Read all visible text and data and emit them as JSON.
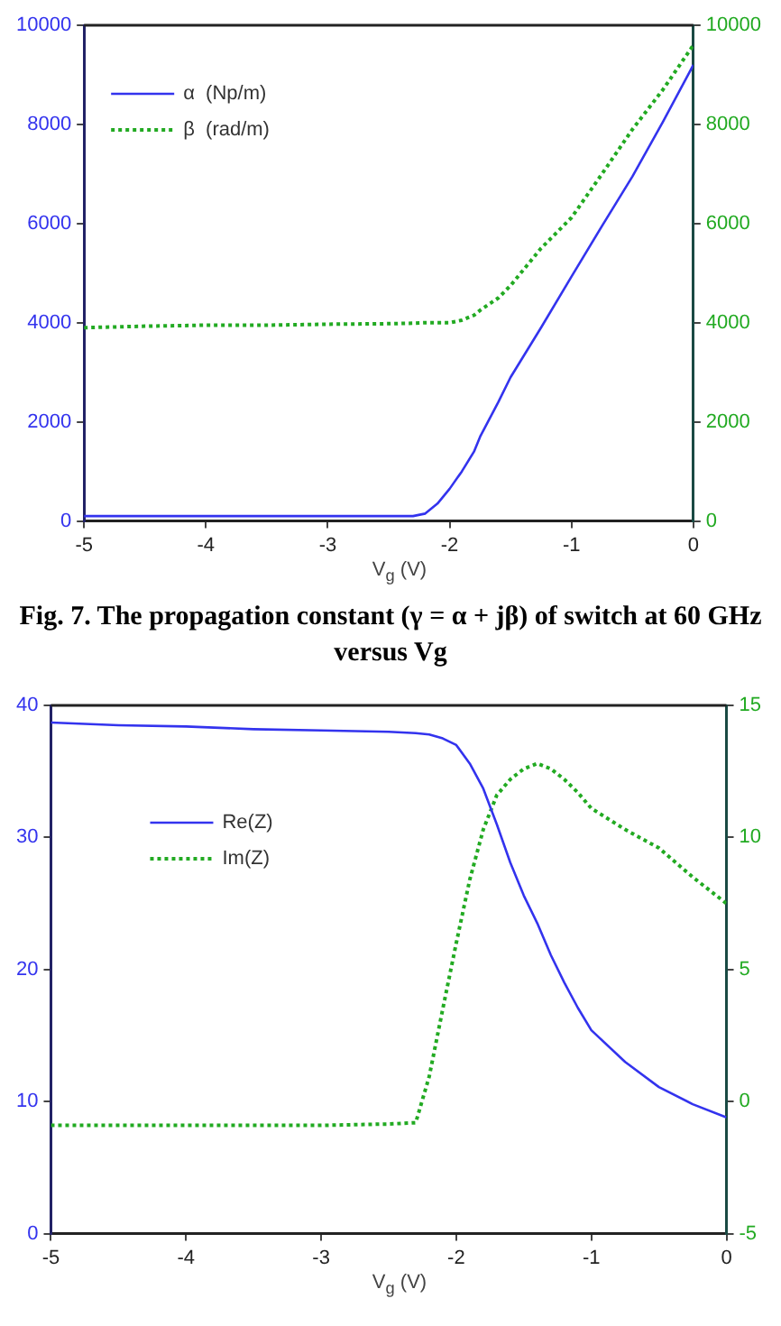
{
  "chart_data": [
    {
      "type": "line",
      "xlabel": "V$_{g}$ (V)",
      "x": [
        -5,
        -4.5,
        -4,
        -3.5,
        -3,
        -2.5,
        -2.3,
        -2.2,
        -2.1,
        -2.0,
        -1.9,
        -1.8,
        -1.75,
        -1.6,
        -1.5,
        -1.25,
        -1.0,
        -0.75,
        -0.5,
        -0.25,
        0
      ],
      "series": [
        {
          "name": "α  (Np/m)",
          "color": "#3333ee",
          "line_style": "solid",
          "axis": "y",
          "values": [
            100,
            100,
            100,
            100,
            100,
            100,
            100,
            150,
            350,
            650,
            1000,
            1400,
            1700,
            2400,
            2900,
            3900,
            4930,
            5950,
            6950,
            8050,
            9200
          ]
        },
        {
          "name": "β  (rad/m)",
          "color": "#22aa22",
          "line_style": "dotted",
          "axis": "y2",
          "values": [
            3900,
            3930,
            3950,
            3950,
            3970,
            3980,
            3990,
            4000,
            4000,
            4000,
            4050,
            4150,
            4250,
            4500,
            4750,
            5500,
            6120,
            7000,
            7900,
            8700,
            9600
          ]
        }
      ],
      "xlim": [
        -5,
        0
      ],
      "xticks": [
        -5,
        -4,
        -3,
        -2,
        -1,
        0
      ],
      "ylim": [
        0,
        10000
      ],
      "yticks": [
        0,
        2000,
        4000,
        6000,
        8000,
        10000
      ],
      "y2lim": [
        0,
        10000
      ],
      "y2ticks": [
        0,
        2000,
        4000,
        6000,
        8000,
        10000
      ],
      "grid": false,
      "legend": "top left",
      "marker": "none",
      "annotations": [
        "Fig. 7. The propagation constant (γ = α + jβ) of switch at 60 GHz versus Vg"
      ]
    },
    {
      "type": "line",
      "xlabel": "V$_{g}$ (V)",
      "x": [
        -5,
        -4.5,
        -4,
        -3.5,
        -3,
        -2.5,
        -2.3,
        -2.2,
        -2.1,
        -2.0,
        -1.9,
        -1.8,
        -1.7,
        -1.6,
        -1.5,
        -1.4,
        -1.3,
        -1.2,
        -1.1,
        -1.0,
        -0.75,
        -0.5,
        -0.25,
        0
      ],
      "series": [
        {
          "name": "Re(Z)",
          "color": "#3333ee",
          "line_style": "solid",
          "axis": "y",
          "values": [
            38.7,
            38.5,
            38.4,
            38.2,
            38.1,
            38.0,
            37.9,
            37.8,
            37.5,
            37.0,
            35.6,
            33.7,
            31.0,
            28.1,
            25.6,
            23.5,
            21.1,
            19.0,
            17.1,
            15.4,
            13.0,
            11.1,
            9.8,
            8.8
          ]
        },
        {
          "name": "Im(Z)",
          "color": "#22aa22",
          "line_style": "dotted",
          "axis": "y2",
          "values": [
            -0.9,
            -0.9,
            -0.9,
            -0.9,
            -0.9,
            -0.85,
            -0.8,
            0.95,
            3.5,
            6.0,
            8.4,
            10.3,
            11.6,
            12.2,
            12.6,
            12.8,
            12.6,
            12.2,
            11.7,
            11.1,
            10.3,
            9.6,
            8.5,
            7.5
          ]
        }
      ],
      "xlim": [
        -5,
        0
      ],
      "xticks": [
        -5,
        -4,
        -3,
        -2,
        -1,
        0
      ],
      "ylim": [
        0,
        40
      ],
      "yticks": [
        0,
        10,
        20,
        30,
        40
      ],
      "y2lim": [
        -5,
        15
      ],
      "y2ticks": [
        -5,
        0,
        5,
        10,
        15
      ],
      "grid": false,
      "legend": "top left",
      "marker": "none"
    }
  ]
}
